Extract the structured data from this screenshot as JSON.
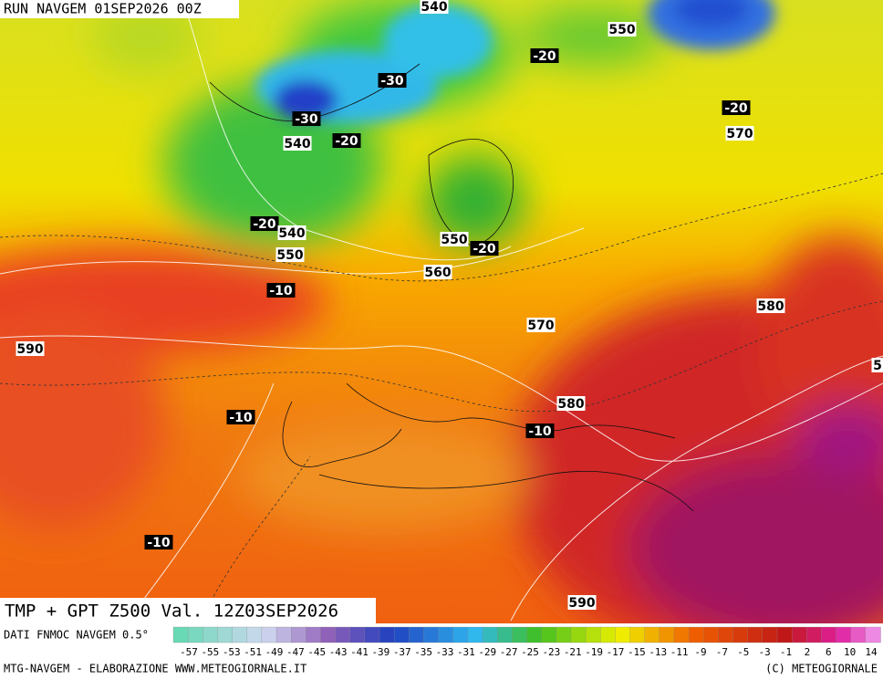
{
  "header": {
    "run": "RUN NAVGEM 01SEP2026 00Z"
  },
  "map": {
    "title": "TMP + GPT Z500 Val. 12Z03SEP2026",
    "labels": [
      "540",
      "550",
      "-20",
      "-30",
      "-30",
      "540",
      "-20",
      "-20",
      "570",
      "-20",
      "540",
      "550",
      "550",
      "-20",
      "560",
      "-10",
      "580",
      "570",
      "590",
      "5",
      "580",
      "-10",
      "-10",
      "-10",
      "590"
    ]
  },
  "legend": {
    "source": "DATI FNMOC NAVGEM 0.5°",
    "ticks": [
      -57,
      -55,
      -53,
      -51,
      -49,
      -47,
      -45,
      -43,
      -41,
      -39,
      -37,
      -35,
      -33,
      -31,
      -29,
      -27,
      -25,
      -23,
      -21,
      -19,
      -17,
      -15,
      -13,
      -11,
      -9,
      -7,
      -5,
      -3,
      -1,
      2,
      6,
      10,
      14
    ]
  },
  "footer": {
    "left": "MTG-NAVGEM - ELABORAZIONE WWW.METEOGIORNALE.IT",
    "right": "(C) METEOGIORNALE"
  }
}
